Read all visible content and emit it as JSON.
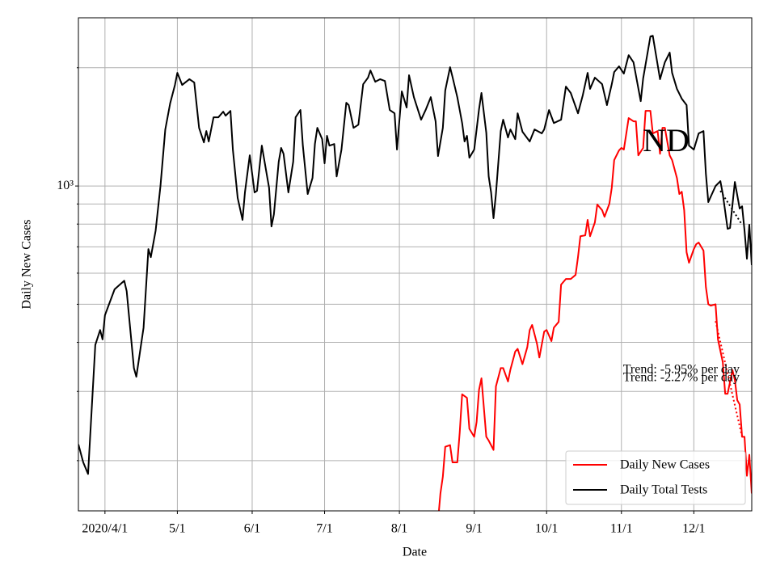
{
  "chart_data": {
    "type": "line",
    "xlabel": "Date",
    "ylabel": "Daily New Cases",
    "annotation": "ND",
    "log_y": true,
    "grid": true,
    "legend": "lower right",
    "xlim": [
      "2020-03-21",
      "2020-12-25"
    ],
    "ylim": [
      149,
      2680
    ],
    "xticks": [
      {
        "value": "2020-04-01",
        "label": "2020/4/1"
      },
      {
        "value": "2020-05-01",
        "label": "5/1"
      },
      {
        "value": "2020-06-01",
        "label": "6/1"
      },
      {
        "value": "2020-07-01",
        "label": "7/1"
      },
      {
        "value": "2020-08-01",
        "label": "8/1"
      },
      {
        "value": "2020-09-01",
        "label": "9/1"
      },
      {
        "value": "2020-10-01",
        "label": "10/1"
      },
      {
        "value": "2020-11-01",
        "label": "11/1"
      },
      {
        "value": "2020-12-01",
        "label": "12/1"
      }
    ],
    "yticks": [
      {
        "value": 1000,
        "label": "10³"
      }
    ],
    "yminor": [
      200,
      300,
      400,
      500,
      600,
      700,
      800,
      900,
      2000
    ],
    "series": [
      {
        "name": "Daily New Cases",
        "color": "#ff0000",
        "x": [
          "2020-08-17",
          "2020-08-18",
          "2020-08-19",
          "2020-08-20",
          "2020-08-22",
          "2020-08-23",
          "2020-08-25",
          "2020-08-26",
          "2020-08-27",
          "2020-08-29",
          "2020-08-30",
          "2020-09-01",
          "2020-09-02",
          "2020-09-03",
          "2020-09-04",
          "2020-09-06",
          "2020-09-07",
          "2020-09-09",
          "2020-09-10",
          "2020-09-12",
          "2020-09-13",
          "2020-09-15",
          "2020-09-16",
          "2020-09-18",
          "2020-09-19",
          "2020-09-21",
          "2020-09-23",
          "2020-09-24",
          "2020-09-25",
          "2020-09-27",
          "2020-09-28",
          "2020-09-30",
          "2020-10-01",
          "2020-10-03",
          "2020-10-04",
          "2020-10-06",
          "2020-10-07",
          "2020-10-09",
          "2020-10-11",
          "2020-10-13",
          "2020-10-14",
          "2020-10-15",
          "2020-10-17",
          "2020-10-18",
          "2020-10-19",
          "2020-10-21",
          "2020-10-22",
          "2020-10-24",
          "2020-10-25",
          "2020-10-27",
          "2020-10-28",
          "2020-10-29",
          "2020-10-31",
          "2020-11-01",
          "2020-11-02",
          "2020-11-04",
          "2020-11-06",
          "2020-11-07",
          "2020-11-08",
          "2020-11-10",
          "2020-11-11",
          "2020-11-13",
          "2020-11-14",
          "2020-11-16",
          "2020-11-17",
          "2020-11-18",
          "2020-11-19",
          "2020-11-21",
          "2020-11-22",
          "2020-11-24",
          "2020-11-25",
          "2020-11-26",
          "2020-11-27",
          "2020-11-28",
          "2020-11-29",
          "2020-12-01",
          "2020-12-02",
          "2020-12-03",
          "2020-12-05",
          "2020-12-06",
          "2020-12-07",
          "2020-12-08",
          "2020-12-10",
          "2020-12-11",
          "2020-12-13",
          "2020-12-14",
          "2020-12-15",
          "2020-12-17",
          "2020-12-18",
          "2020-12-19",
          "2020-12-20",
          "2020-12-21",
          "2020-12-22",
          "2020-12-23",
          "2020-12-24",
          "2020-12-25"
        ],
        "values": [
          140,
          165,
          182,
          217,
          219,
          198,
          198,
          236,
          295,
          289,
          241,
          230,
          251,
          303,
          324,
          230,
          225,
          213,
          309,
          344,
          344,
          318,
          341,
          379,
          385,
          352,
          389,
          430,
          443,
          397,
          366,
          426,
          430,
          403,
          436,
          451,
          561,
          580,
          580,
          594,
          659,
          745,
          749,
          820,
          745,
          808,
          897,
          868,
          835,
          901,
          990,
          1164,
          1232,
          1250,
          1238,
          1489,
          1461,
          1461,
          1197,
          1250,
          1553,
          1553,
          1361,
          1380,
          1208,
          1406,
          1406,
          1197,
          1164,
          1048,
          954,
          967,
          868,
          678,
          638,
          691,
          711,
          718,
          685,
          553,
          500,
          496,
          500,
          407,
          356,
          296,
          296,
          340,
          321,
          285,
          278,
          230,
          230,
          183,
          207,
          165
        ]
      },
      {
        "name": "Daily Total Tests",
        "color": "#000000",
        "x": [
          "2020-03-21",
          "2020-03-23",
          "2020-03-25",
          "2020-03-28",
          "2020-03-30",
          "2020-03-31",
          "2020-04-01",
          "2020-04-05",
          "2020-04-09",
          "2020-04-10",
          "2020-04-13",
          "2020-04-14",
          "2020-04-17",
          "2020-04-19",
          "2020-04-20",
          "2020-04-22",
          "2020-04-24",
          "2020-04-26",
          "2020-04-28",
          "2020-04-30",
          "2020-05-01",
          "2020-05-03",
          "2020-05-06",
          "2020-05-08",
          "2020-05-10",
          "2020-05-12",
          "2020-05-13",
          "2020-05-14",
          "2020-05-16",
          "2020-05-18",
          "2020-05-20",
          "2020-05-21",
          "2020-05-23",
          "2020-05-24",
          "2020-05-26",
          "2020-05-28",
          "2020-05-29",
          "2020-05-31",
          "2020-06-01",
          "2020-06-02",
          "2020-06-03",
          "2020-06-05",
          "2020-06-07",
          "2020-06-08",
          "2020-06-09",
          "2020-06-10",
          "2020-06-12",
          "2020-06-13",
          "2020-06-14",
          "2020-06-16",
          "2020-06-18",
          "2020-06-19",
          "2020-06-21",
          "2020-06-22",
          "2020-06-24",
          "2020-06-26",
          "2020-06-27",
          "2020-06-28",
          "2020-06-30",
          "2020-07-01",
          "2020-07-02",
          "2020-07-03",
          "2020-07-05",
          "2020-07-06",
          "2020-07-08",
          "2020-07-10",
          "2020-07-11",
          "2020-07-13",
          "2020-07-15",
          "2020-07-17",
          "2020-07-19",
          "2020-07-20",
          "2020-07-22",
          "2020-07-24",
          "2020-07-26",
          "2020-07-28",
          "2020-07-30",
          "2020-07-31",
          "2020-08-02",
          "2020-08-04",
          "2020-08-05",
          "2020-08-07",
          "2020-08-10",
          "2020-08-12",
          "2020-08-14",
          "2020-08-16",
          "2020-08-17",
          "2020-08-19",
          "2020-08-20",
          "2020-08-22",
          "2020-08-23",
          "2020-08-25",
          "2020-08-27",
          "2020-08-28",
          "2020-08-29",
          "2020-08-30",
          "2020-09-01",
          "2020-09-03",
          "2020-09-04",
          "2020-09-06",
          "2020-09-07",
          "2020-09-08",
          "2020-09-09",
          "2020-09-10",
          "2020-09-12",
          "2020-09-13",
          "2020-09-15",
          "2020-09-16",
          "2020-09-18",
          "2020-09-19",
          "2020-09-21",
          "2020-09-24",
          "2020-09-26",
          "2020-09-29",
          "2020-09-30",
          "2020-10-02",
          "2020-10-04",
          "2020-10-07",
          "2020-10-09",
          "2020-10-11",
          "2020-10-14",
          "2020-10-16",
          "2020-10-18",
          "2020-10-19",
          "2020-10-21",
          "2020-10-24",
          "2020-10-26",
          "2020-10-28",
          "2020-10-29",
          "2020-10-31",
          "2020-11-02",
          "2020-11-04",
          "2020-11-06",
          "2020-11-09",
          "2020-11-10",
          "2020-11-13",
          "2020-11-14",
          "2020-11-17",
          "2020-11-19",
          "2020-11-21",
          "2020-11-22",
          "2020-11-24",
          "2020-11-26",
          "2020-11-28",
          "2020-11-29",
          "2020-12-01",
          "2020-12-03",
          "2020-12-05",
          "2020-12-06",
          "2020-12-07",
          "2020-12-10",
          "2020-12-12",
          "2020-12-13",
          "2020-12-15",
          "2020-12-16",
          "2020-12-18",
          "2020-12-20",
          "2020-12-21",
          "2020-12-22",
          "2020-12-23",
          "2020-12-24",
          "2020-12-25"
        ],
        "values": [
          220,
          198,
          185,
          394,
          430,
          407,
          469,
          546,
          574,
          540,
          344,
          327,
          436,
          691,
          659,
          770,
          1000,
          1393,
          1622,
          1808,
          1941,
          1808,
          1870,
          1834,
          1406,
          1291,
          1380,
          1298,
          1496,
          1496,
          1546,
          1510,
          1553,
          1238,
          932,
          820,
          963,
          1197,
          1074,
          963,
          972,
          1267,
          1074,
          990,
          789,
          847,
          1153,
          1250,
          1208,
          963,
          1153,
          1496,
          1561,
          1267,
          954,
          1048,
          1279,
          1406,
          1316,
          1142,
          1342,
          1267,
          1279,
          1058,
          1238,
          1629,
          1607,
          1406,
          1432,
          1816,
          1887,
          1968,
          1842,
          1870,
          1850,
          1561,
          1531,
          1238,
          1741,
          1584,
          1914,
          1683,
          1475,
          1568,
          1683,
          1461,
          1192,
          1406,
          1750,
          2006,
          1896,
          1683,
          1446,
          1298,
          1342,
          1180,
          1238,
          1568,
          1725,
          1367,
          1058,
          963,
          828,
          954,
          1380,
          1475,
          1329,
          1393,
          1316,
          1531,
          1374,
          1298,
          1393,
          1361,
          1393,
          1561,
          1446,
          1475,
          1791,
          1725,
          1531,
          1703,
          1941,
          1767,
          1887,
          1816,
          1607,
          1816,
          1950,
          2016,
          1932,
          2153,
          2065,
          1644,
          1878,
          2402,
          2412,
          1870,
          2065,
          2186,
          1941,
          1767,
          1668,
          1607,
          1267,
          1238,
          1361,
          1380,
          1074,
          910,
          1000,
          1029,
          954,
          778,
          782,
          1024,
          876,
          888,
          771,
          653,
          797,
          629
        ]
      }
    ],
    "trends": [
      {
        "label": "Trend: -5.95% per day",
        "color": "#ff0000",
        "linestyle": "dotted",
        "x": [
          "2020-12-10",
          "2020-12-21"
        ],
        "values": [
          453,
          230
        ]
      },
      {
        "label": "Trend: -2.27% per day",
        "color": "#000000",
        "linestyle": "dotted",
        "x": [
          "2020-12-12",
          "2020-12-21"
        ],
        "values": [
          972,
          797
        ]
      }
    ]
  }
}
